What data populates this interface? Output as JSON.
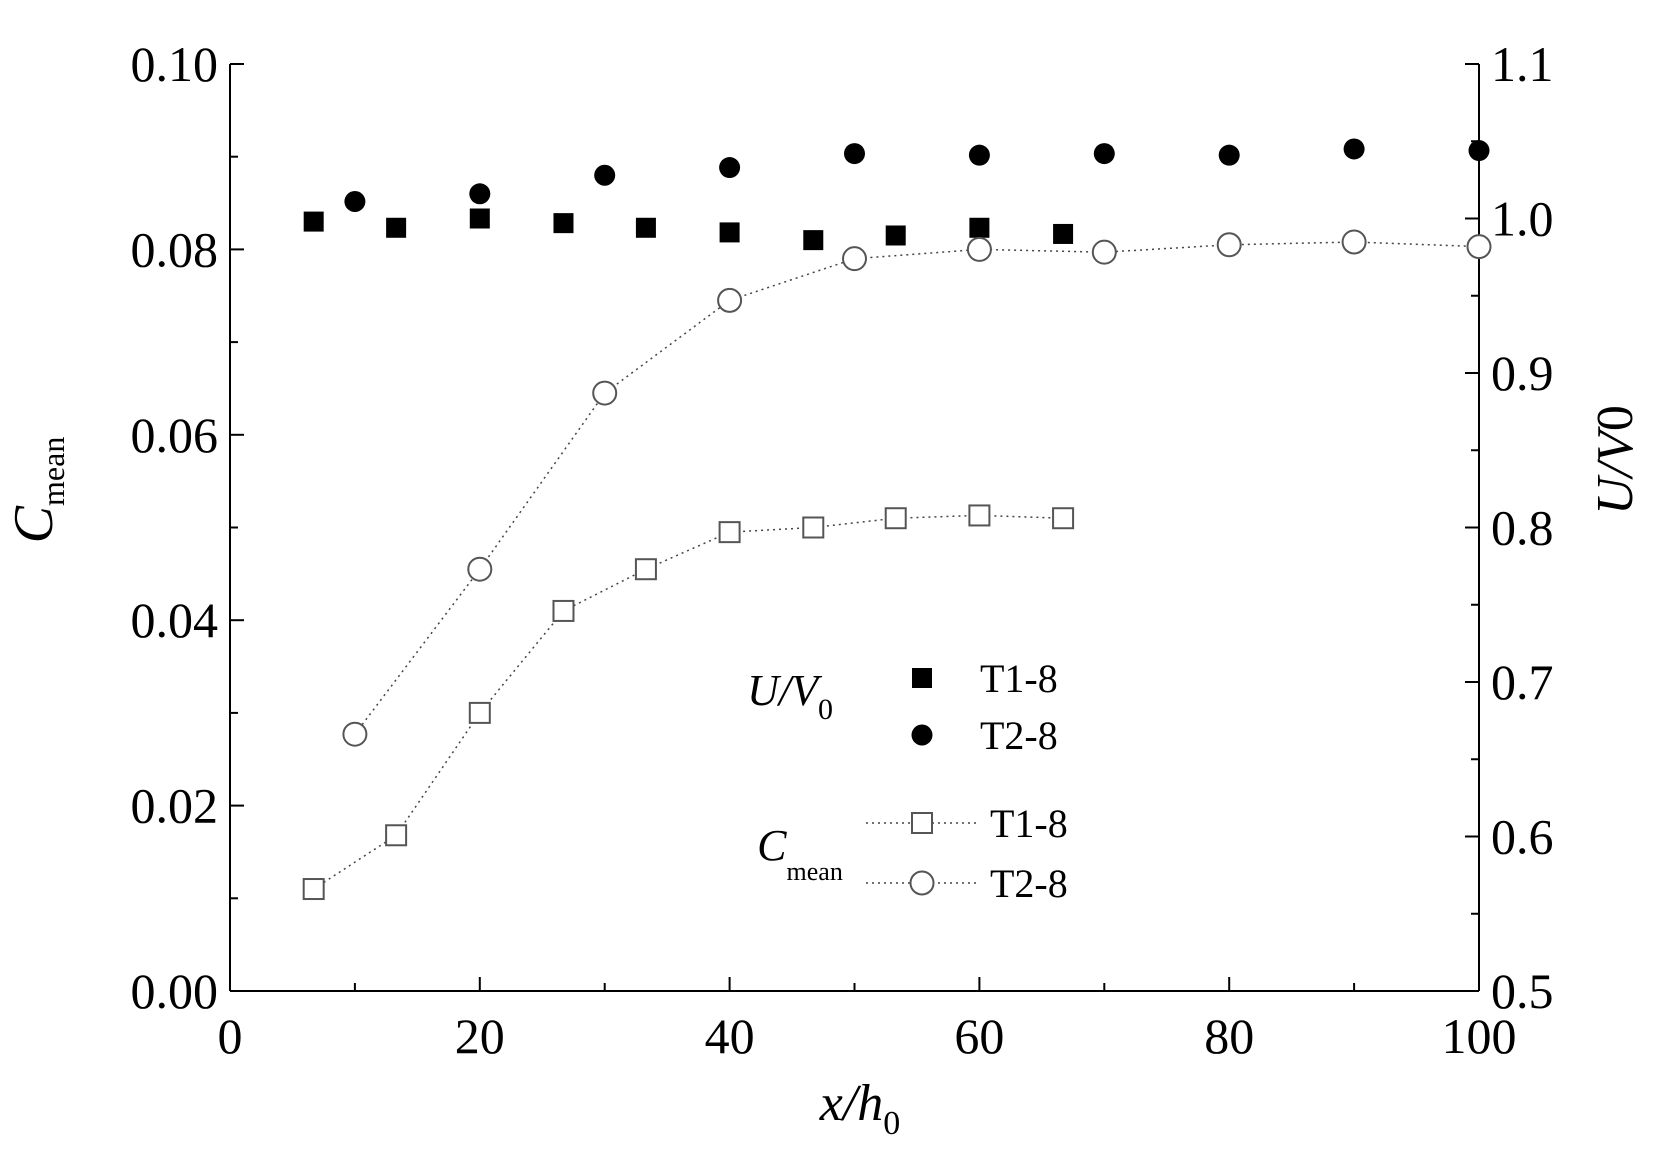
{
  "chart_data": {
    "type": "scatter",
    "x_axis": {
      "label_main": "x/h",
      "label_sub": "0",
      "range": [
        0,
        100
      ],
      "ticks": [
        0,
        20,
        40,
        60,
        80,
        100
      ],
      "tick_labels": [
        "0",
        "20",
        "40",
        "60",
        "80",
        "100"
      ],
      "minor_step": 10
    },
    "y_left": {
      "label_main": "C",
      "label_sub": "mean",
      "range": [
        0.0,
        0.1
      ],
      "ticks": [
        0.0,
        0.02,
        0.04,
        0.06,
        0.08,
        0.1
      ],
      "tick_labels": [
        "0.00",
        "0.02",
        "0.04",
        "0.06",
        "0.08",
        "0.10"
      ],
      "minor_step": 0.01
    },
    "y_right": {
      "label_main": "U/V",
      "label_sub": "0",
      "range": [
        0.5,
        1.1
      ],
      "ticks": [
        0.5,
        0.6,
        0.7,
        0.8,
        0.9,
        1.0,
        1.1
      ],
      "tick_labels": [
        "0.5",
        "0.6",
        "0.7",
        "0.8",
        "0.9",
        "1.0",
        "1.1"
      ],
      "minor_step": 0.05
    },
    "series": [
      {
        "name": "T1-8",
        "group": "U/V0",
        "axis": "right",
        "marker": "square-filled",
        "connected": false,
        "points": [
          [
            6.7,
            0.998
          ],
          [
            13.3,
            0.994
          ],
          [
            20,
            1.0
          ],
          [
            26.7,
            0.997
          ],
          [
            33.3,
            0.994
          ],
          [
            40,
            0.991
          ],
          [
            46.7,
            0.986
          ],
          [
            53.3,
            0.989
          ],
          [
            60,
            0.994
          ],
          [
            66.7,
            0.99
          ]
        ]
      },
      {
        "name": "T2-8",
        "group": "U/V0",
        "axis": "right",
        "marker": "circle-filled",
        "connected": false,
        "points": [
          [
            10,
            1.011
          ],
          [
            20,
            1.016
          ],
          [
            30,
            1.028
          ],
          [
            40,
            1.033
          ],
          [
            50,
            1.042
          ],
          [
            60,
            1.041
          ],
          [
            70,
            1.042
          ],
          [
            80,
            1.041
          ],
          [
            90,
            1.045
          ],
          [
            100,
            1.044
          ]
        ]
      },
      {
        "name": "T1-8",
        "group": "Cmean",
        "axis": "left",
        "marker": "square-open",
        "connected": true,
        "points": [
          [
            6.7,
            0.011
          ],
          [
            13.3,
            0.0168
          ],
          [
            20,
            0.03
          ],
          [
            26.7,
            0.041
          ],
          [
            33.3,
            0.0455
          ],
          [
            40,
            0.0495
          ],
          [
            46.7,
            0.05
          ],
          [
            53.3,
            0.051
          ],
          [
            60,
            0.0513
          ],
          [
            66.7,
            0.051
          ]
        ]
      },
      {
        "name": "T2-8",
        "group": "Cmean",
        "axis": "left",
        "marker": "circle-open",
        "connected": true,
        "points": [
          [
            10,
            0.0277
          ],
          [
            20,
            0.0455
          ],
          [
            30,
            0.0645
          ],
          [
            40,
            0.0745
          ],
          [
            50,
            0.079
          ],
          [
            60,
            0.08
          ],
          [
            70,
            0.0797
          ],
          [
            80,
            0.0805
          ],
          [
            90,
            0.0808
          ],
          [
            100,
            0.0803
          ]
        ]
      }
    ],
    "legend": {
      "placement": "center",
      "groups": [
        {
          "label_main": "U/V",
          "label_sub": "0",
          "entries": [
            "T1-8",
            "T2-8"
          ]
        },
        {
          "label_main": "C",
          "label_sub": "mean",
          "entries": [
            "T1-8",
            "T2-8"
          ]
        }
      ]
    },
    "grid": false
  }
}
